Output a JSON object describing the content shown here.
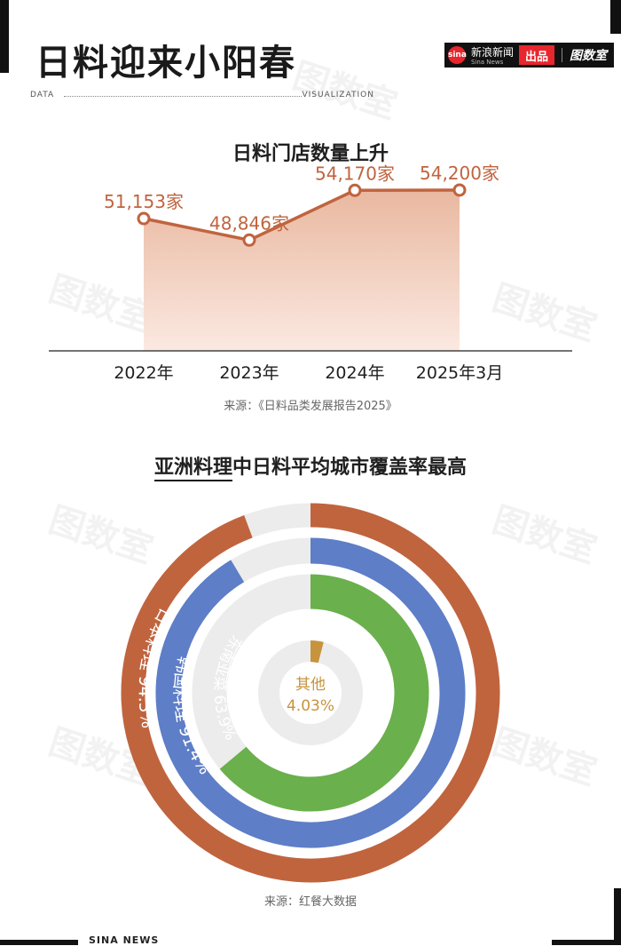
{
  "header": {
    "title": "日料迎来小阳春",
    "brand_logo": "sina",
    "brand_name": "新浪新闻",
    "brand_name_en": "Sina News",
    "brand_tag": "出品",
    "brand_studio": "图数室",
    "tagline_left": "DATA",
    "tagline_right": "VISUALIZATION"
  },
  "watermark": "图数室",
  "chart_data": [
    {
      "type": "area",
      "title": "日料门店数量上升",
      "categories": [
        "2022年",
        "2023年",
        "2024年",
        "2025年3月"
      ],
      "values": [
        51153,
        48846,
        54170,
        54200
      ],
      "value_labels": [
        "51,153家",
        "48,846家",
        "54,170家",
        "54,200家"
      ],
      "ylim": [
        37000,
        56000
      ],
      "source": "来源：《日料品类发展报告2025》",
      "colors": {
        "line": "#c0643e",
        "fill_top": "#e9b8a0",
        "fill_bottom": "#fbe9e1"
      }
    },
    {
      "type": "pie",
      "title_underlined": "亚洲料理",
      "title_rest": "中日料平均城市覆盖率最高",
      "series": [
        {
          "name": "日本料理",
          "value": 94.3,
          "label": "日本料理 94.3%",
          "color": "#c0643e"
        },
        {
          "name": "韩国料理",
          "value": 91.4,
          "label": "韩国料理 91.4%",
          "color": "#5e7ec7"
        },
        {
          "name": "东南亚菜",
          "value": 63.9,
          "label": "东南亚菜 63.9%",
          "color": "#6ab04c"
        },
        {
          "name": "其他",
          "value": 4.03,
          "label": "其他",
          "label_value": "4.03%",
          "color": "#c7933d"
        }
      ],
      "remainder_color": "#ececec",
      "source": "来源：红餐大数据"
    }
  ],
  "footer": "SINA NEWS"
}
